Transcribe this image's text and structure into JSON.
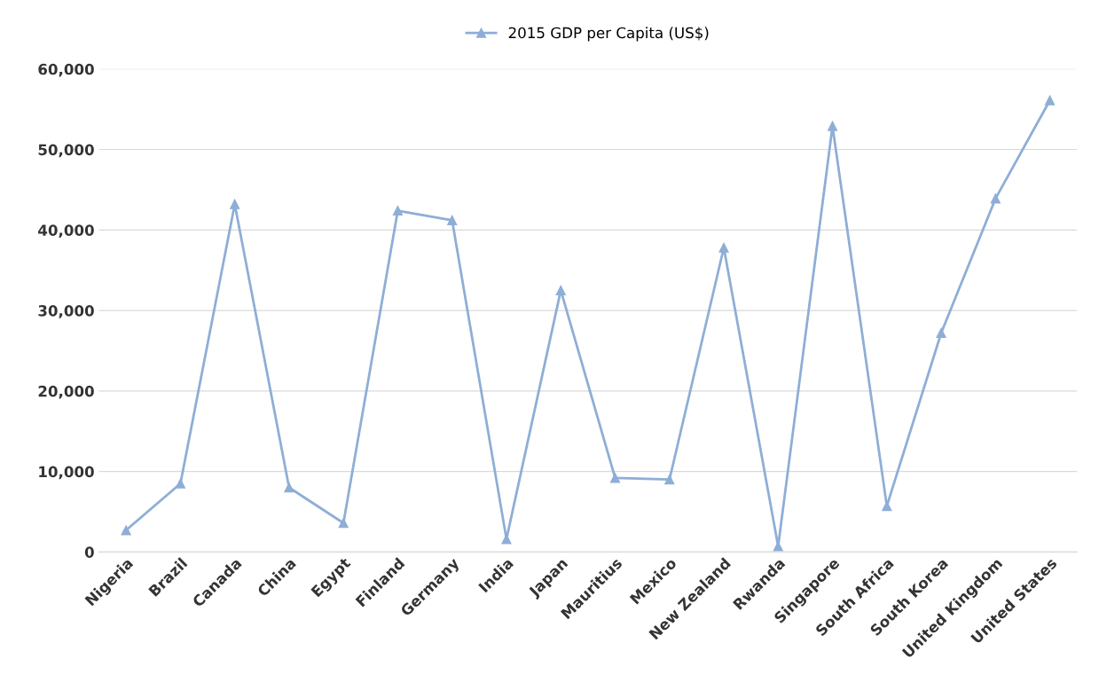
{
  "chart_data": {
    "type": "line",
    "categories": [
      "Nigeria",
      "Brazil",
      "Canada",
      "China",
      "Egypt",
      "Finland",
      "Germany",
      "India",
      "Japan",
      "Mauritius",
      "Mexico",
      "New Zealand",
      "Rwanda",
      "Singapore",
      "South Africa",
      "South Korea",
      "United Kingdom",
      "United States"
    ],
    "series": [
      {
        "name": "2015 GDP per Capita (US$)",
        "color": "#8eaed6",
        "values": [
          2700,
          8500,
          43200,
          8000,
          3600,
          42400,
          41200,
          1600,
          32500,
          9200,
          9000,
          37800,
          700,
          52900,
          5700,
          27200,
          43900,
          56100
        ]
      }
    ],
    "ylim": [
      0,
      60000
    ],
    "yticks": [
      {
        "value": 0,
        "label": "0"
      },
      {
        "value": 10000,
        "label": "10,000"
      },
      {
        "value": 20000,
        "label": "20,000"
      },
      {
        "value": 30000,
        "label": "30,000"
      },
      {
        "value": 40000,
        "label": "40,000"
      },
      {
        "value": 50000,
        "label": "50,000"
      },
      {
        "value": 60000,
        "label": "60,000"
      }
    ],
    "grid": "y",
    "legend": "top",
    "marker": "triangle",
    "line_style": "solid"
  }
}
